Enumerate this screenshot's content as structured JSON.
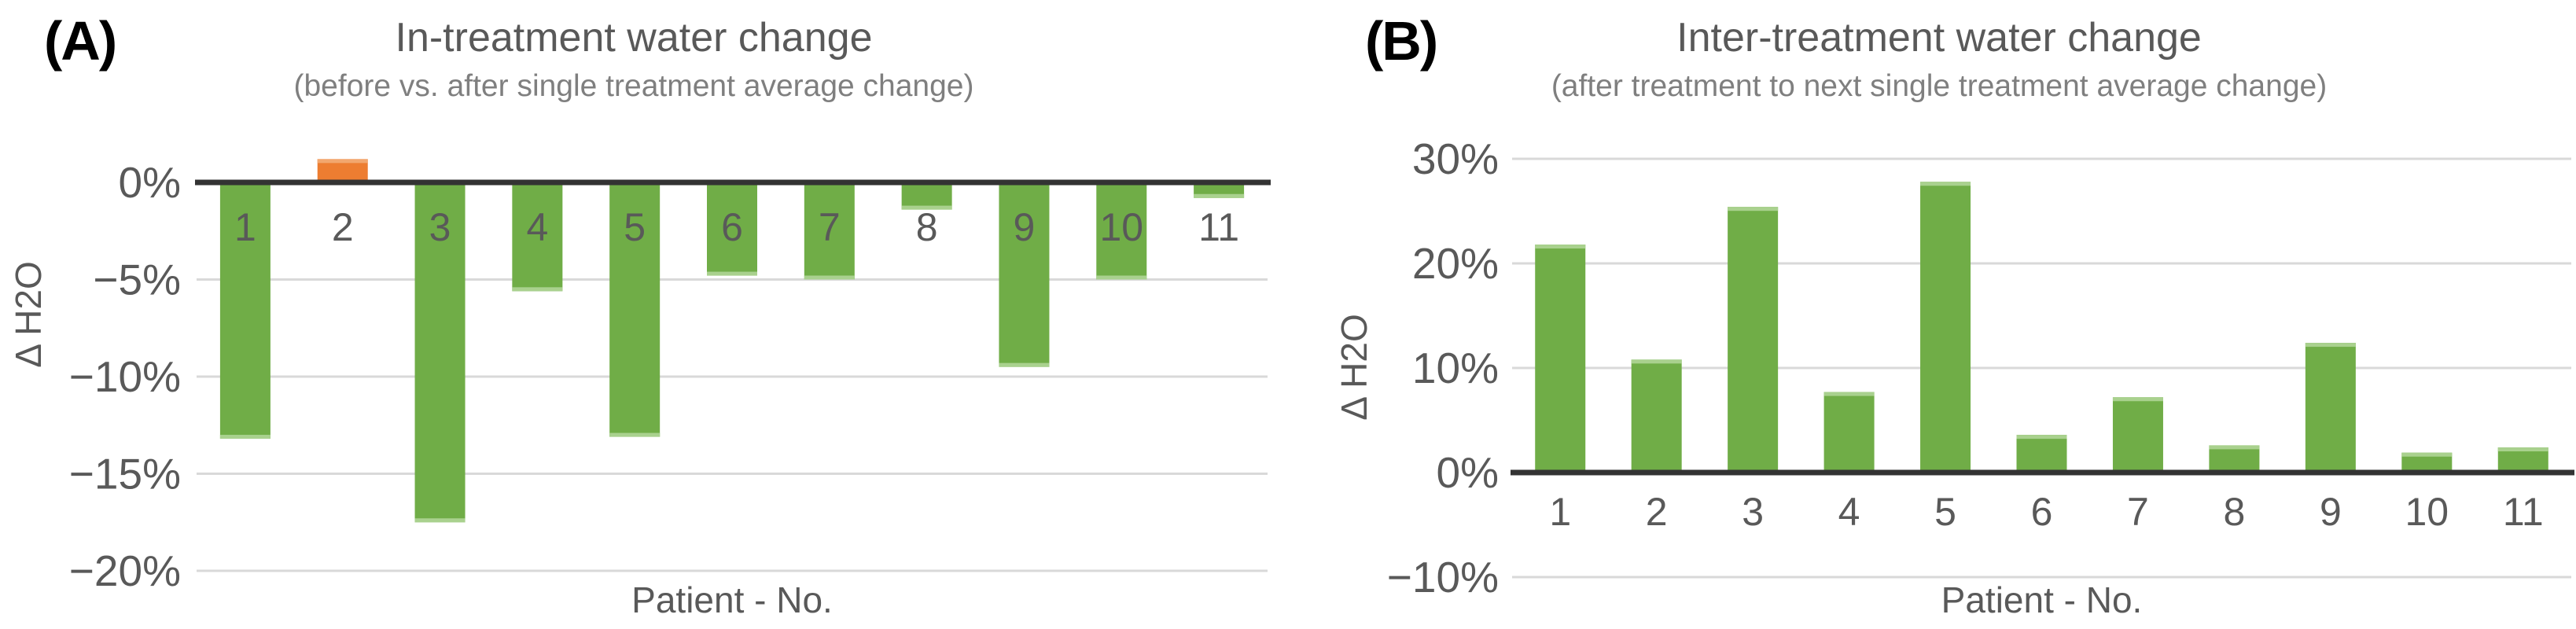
{
  "colors": {
    "bar_green": "#70AD47",
    "bar_green_edge": "#A9D18E",
    "bar_orange": "#ED7D31",
    "bar_orange_edge": "#F2A76F",
    "axis_line": "#333333",
    "gridline": "#D9D9D9",
    "text_gray": "#595959",
    "subtitle_gray": "#7F7F7F",
    "panel_label_black": "#000000"
  },
  "chart_data": [
    {
      "id": "A",
      "type": "bar",
      "panel_label": "(A)",
      "title": "In-treatment water change",
      "subtitle": "(before vs. after single treatment average change)",
      "xlabel": "Patient - No.",
      "ylabel": "Δ H2O",
      "unit": "%",
      "categories": [
        "1",
        "2",
        "3",
        "4",
        "5",
        "6",
        "7",
        "8",
        "9",
        "10",
        "11"
      ],
      "values": [
        -13.2,
        1.2,
        -17.5,
        -5.6,
        -13.1,
        -4.8,
        -5.0,
        -1.4,
        -9.5,
        -5.0,
        -0.8
      ],
      "bar_colors": [
        "#70AD47",
        "#ED7D31",
        "#70AD47",
        "#70AD47",
        "#70AD47",
        "#70AD47",
        "#70AD47",
        "#70AD47",
        "#70AD47",
        "#70AD47",
        "#70AD47"
      ],
      "ylim": [
        -20,
        2
      ],
      "yticks": [
        0,
        -5,
        -10,
        -15,
        -20
      ],
      "ytick_labels": [
        "0%",
        "−5%",
        "−10%",
        "−15%",
        "−20%"
      ],
      "grid": true,
      "legend": "none",
      "category_label_position": "below zero axis, overlapping bars"
    },
    {
      "id": "B",
      "type": "bar",
      "panel_label": "(B)",
      "title": "Inter-treatment water change",
      "subtitle": "(after treatment to next single treatment average change)",
      "xlabel": "Patient - No.",
      "ylabel": "Δ H2O",
      "unit": "%",
      "categories": [
        "1",
        "2",
        "3",
        "4",
        "5",
        "6",
        "7",
        "8",
        "9",
        "10",
        "11"
      ],
      "values": [
        21.8,
        10.8,
        25.4,
        7.7,
        27.8,
        3.6,
        7.2,
        2.6,
        12.4,
        1.9,
        2.4
      ],
      "bar_colors": [
        "#70AD47",
        "#70AD47",
        "#70AD47",
        "#70AD47",
        "#70AD47",
        "#70AD47",
        "#70AD47",
        "#70AD47",
        "#70AD47",
        "#70AD47",
        "#70AD47"
      ],
      "ylim": [
        -10,
        30
      ],
      "yticks": [
        30,
        20,
        10,
        0,
        -10
      ],
      "ytick_labels": [
        "30%",
        "20%",
        "10%",
        "0%",
        "−10%"
      ],
      "grid": true,
      "legend": "none",
      "category_label_position": "below zero axis"
    }
  ]
}
